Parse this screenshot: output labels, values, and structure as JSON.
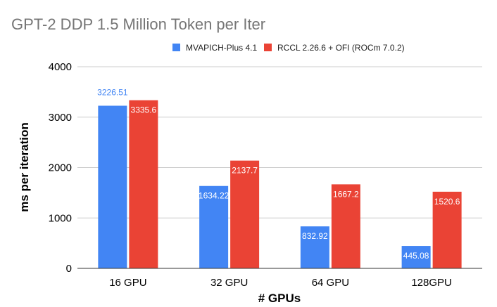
{
  "chart_data": {
    "type": "bar",
    "title": "GPT-2 DDP 1.5 Million Token per Iter",
    "xlabel": "# GPUs",
    "ylabel": "ms per iteration",
    "categories": [
      "16 GPU",
      "32 GPU",
      "64 GPU",
      "128GPU"
    ],
    "ylim": [
      0,
      4000
    ],
    "yticks": [
      0,
      1000,
      2000,
      3000,
      4000
    ],
    "grid": true,
    "legend_position": "top",
    "series": [
      {
        "name": "MVAPICH-Plus 4.1",
        "color": "#4285f4",
        "values": [
          3226.51,
          1634.22,
          832.92,
          445.08
        ],
        "labels": [
          "3226.51",
          "1634.22",
          "832.92",
          "445.08"
        ]
      },
      {
        "name": "RCCL 2.26.6 + OFI (ROCm 7.0.2)",
        "color": "#ea4335",
        "values": [
          3335.6,
          2137.7,
          1667.2,
          1520.6
        ],
        "labels": [
          "3335.6",
          "2137.7",
          "1667.2",
          "1520.6"
        ]
      }
    ]
  }
}
